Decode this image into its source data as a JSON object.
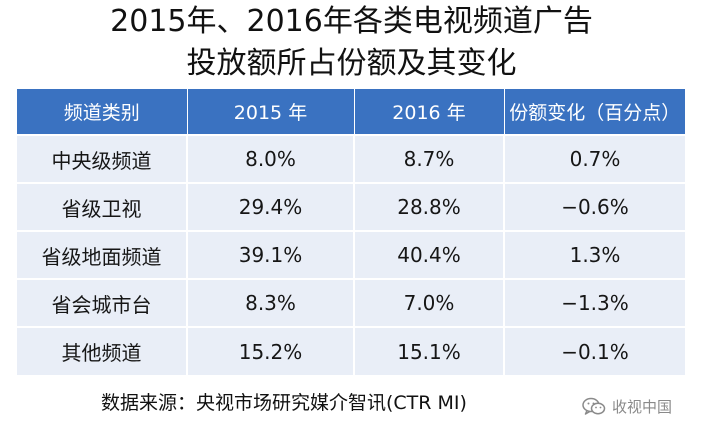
{
  "title": {
    "line1": "2015年、2016年各类电视频道广告",
    "line2": "投放额所占份额及其变化"
  },
  "table": {
    "headers": [
      "频道类别",
      "2015 年",
      "2016 年",
      "份额变化（百分点）"
    ],
    "rows": [
      [
        "中央级频道",
        "8.0%",
        "8.7%",
        "0.7%"
      ],
      [
        "省级卫视",
        "29.4%",
        "28.8%",
        "−0.6%"
      ],
      [
        "省级地面频道",
        "39.1%",
        "40.4%",
        "1.3%"
      ],
      [
        "省会城市台",
        "8.3%",
        "7.0%",
        "−1.3%"
      ],
      [
        "其他频道",
        "15.2%",
        "15.1%",
        "−0.1%"
      ]
    ]
  },
  "source": "数据来源：央视市场研究媒介智讯(CTR MI)",
  "watermark": {
    "icon": "wechat-icon",
    "text": "收视中国"
  },
  "colors": {
    "header_bg": "#3a72c1",
    "row_bg": "#e9eef7",
    "watermark": "#8a8a8a"
  }
}
